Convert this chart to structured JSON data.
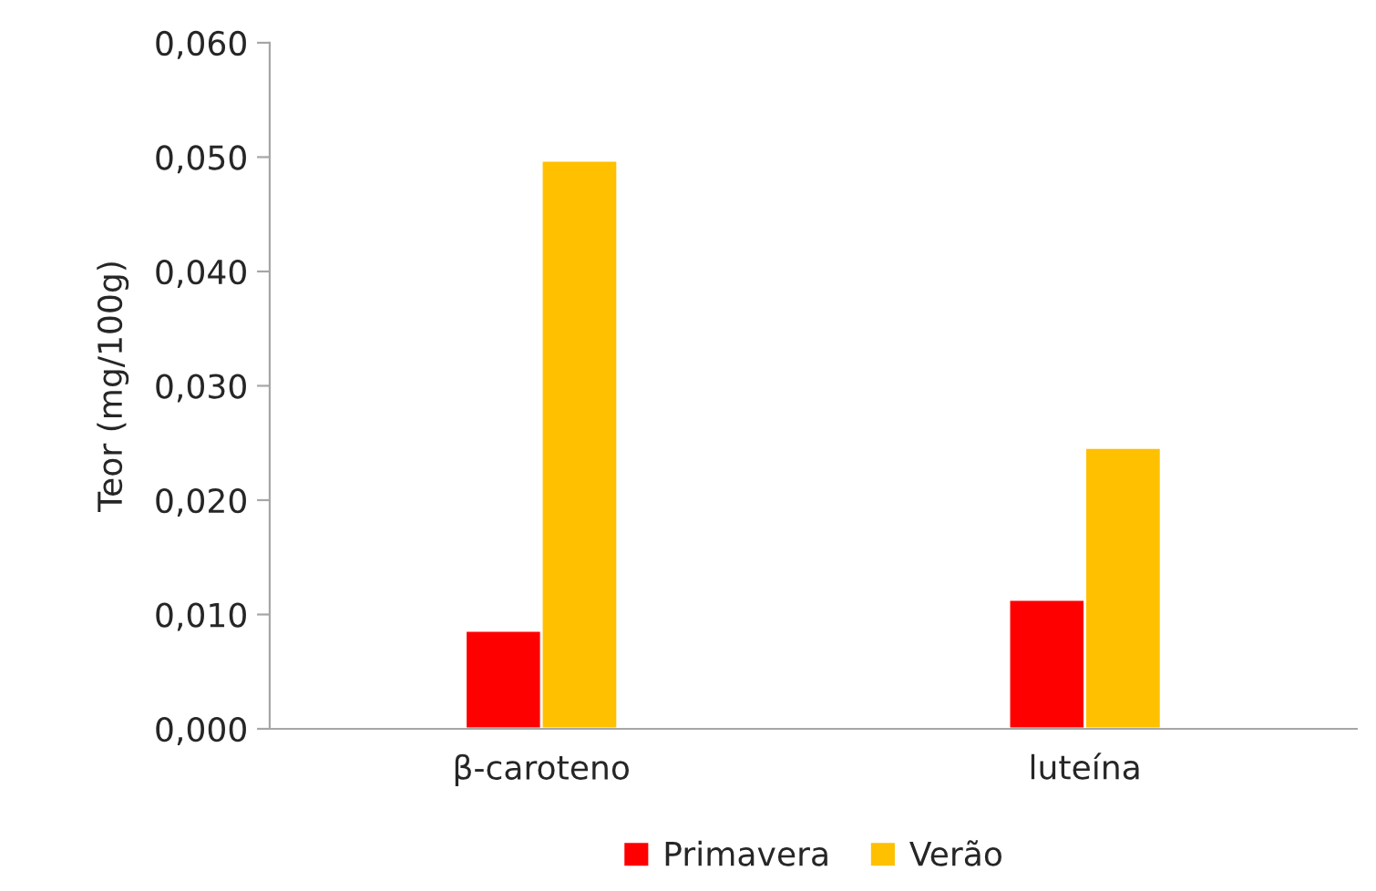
{
  "chart_data": {
    "type": "bar",
    "ylabel": "Teor (mg/100g)",
    "categories": [
      "β-caroteno",
      "luteína"
    ],
    "series": [
      {
        "name": "Primavera",
        "color": "#ff0000",
        "values": [
          0.0086,
          0.0113
        ]
      },
      {
        "name": "Verão",
        "color": "#ffc000",
        "values": [
          0.0497,
          0.0246
        ]
      }
    ],
    "ylim": [
      0,
      0.06
    ],
    "yticks": [
      {
        "value": 0,
        "label": "0,000"
      },
      {
        "value": 0.01,
        "label": "0,010"
      },
      {
        "value": 0.02,
        "label": "0,020"
      },
      {
        "value": 0.03,
        "label": "0,030"
      },
      {
        "value": 0.04,
        "label": "0,040"
      },
      {
        "value": 0.05,
        "label": "0,050"
      },
      {
        "value": 0.06,
        "label": "0,060"
      }
    ],
    "grid": false,
    "legend": "bottom"
  }
}
